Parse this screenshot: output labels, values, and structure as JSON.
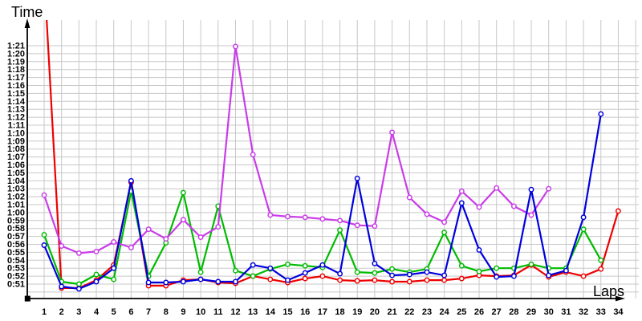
{
  "chart_data": {
    "type": "line",
    "title": "",
    "xlabel": "Laps",
    "ylabel": "Time",
    "grid": true,
    "legend": "none",
    "x_ticks": [
      1,
      2,
      3,
      4,
      5,
      6,
      7,
      8,
      9,
      10,
      11,
      12,
      13,
      14,
      15,
      16,
      17,
      18,
      19,
      20,
      21,
      22,
      23,
      24,
      25,
      26,
      27,
      28,
      29,
      30,
      31,
      32,
      33,
      34
    ],
    "y_tick_labels": [
      "1:21",
      "1:20",
      "1:19",
      "1:18",
      "1:17",
      "1:16",
      "1:15",
      "1:14",
      "1:13",
      "1:12",
      "1:11",
      "1:10",
      "1:09",
      "1:08",
      "1:07",
      "1:06",
      "1:05",
      "1:04",
      "1:03",
      "1:02",
      "1:01",
      "1:00",
      "0:59",
      "0:58",
      "0:57",
      "0:56",
      "0:55",
      "0:54",
      "0:53",
      "0:52",
      "0:51"
    ],
    "y_axis": {
      "labeled_min_seconds": 51,
      "labeled_max_seconds": 81,
      "extra_unlabeled_gridline_seconds": 50,
      "units": "m:ss per lap"
    },
    "series": [
      {
        "name": "red",
        "color": "#ee0000",
        "values_seconds": [
          90,
          50.5,
          50.5,
          51.5,
          53.4,
          63.8,
          50.8,
          50.8,
          51.5,
          51.6,
          51.2,
          51.1,
          52,
          51.6,
          51.2,
          51.7,
          52,
          51.5,
          51.4,
          51.5,
          51.3,
          51.3,
          51.5,
          51.5,
          51.7,
          52.1,
          52,
          52.1,
          53.4,
          51.9,
          52.5,
          52,
          52.9,
          60.2
        ]
      },
      {
        "name": "green",
        "color": "#00bb00",
        "values_seconds": [
          57.2,
          51.3,
          51,
          52.2,
          51.6,
          62.7,
          52,
          56.2,
          62.5,
          52.5,
          60.8,
          52.7,
          52,
          52.9,
          53.5,
          53.3,
          53.1,
          57.8,
          52.5,
          52.4,
          52.9,
          52.5,
          52.9,
          57.5,
          53.3,
          52.6,
          53,
          53,
          53.5,
          53,
          53,
          57.9,
          54,
          null
        ]
      },
      {
        "name": "violet",
        "color": "#c93ce8",
        "values_seconds": [
          62.2,
          55.8,
          54.9,
          55.1,
          56.3,
          55.6,
          57.9,
          56.7,
          59.1,
          56.9,
          58.2,
          80.9,
          67.3,
          59.7,
          59.5,
          59.4,
          59.2,
          59,
          58.4,
          58.3,
          70.1,
          61.9,
          59.8,
          58.8,
          62.7,
          60.7,
          63.1,
          60.8,
          59.7,
          63,
          null,
          null,
          null,
          null
        ]
      },
      {
        "name": "blue",
        "color": "#0000dd",
        "values_seconds": [
          55.9,
          50.7,
          50.4,
          51.3,
          53,
          64,
          51.2,
          51.2,
          51.3,
          51.6,
          51.3,
          51.3,
          53.4,
          53,
          51.5,
          52.4,
          53.4,
          52.3,
          64.3,
          53.6,
          52.1,
          52.2,
          52.5,
          52.1,
          61.2,
          55.3,
          51.9,
          52,
          62.9,
          52.1,
          52.7,
          59.4,
          72.4,
          null
        ]
      }
    ],
    "notes": "Lap-time chart, one point per lap. Red lap 1 is far above the visible scale (~1:30); its line is clipped at the plot top. Violet series ends at lap 30, green and blue end at lap 33, red runs to lap 34."
  },
  "colors": {
    "background": "#ffffff",
    "gridline": "#c8c8c8",
    "axis": "#000000",
    "text": "#000000",
    "marker_fill": "#ffffff"
  }
}
